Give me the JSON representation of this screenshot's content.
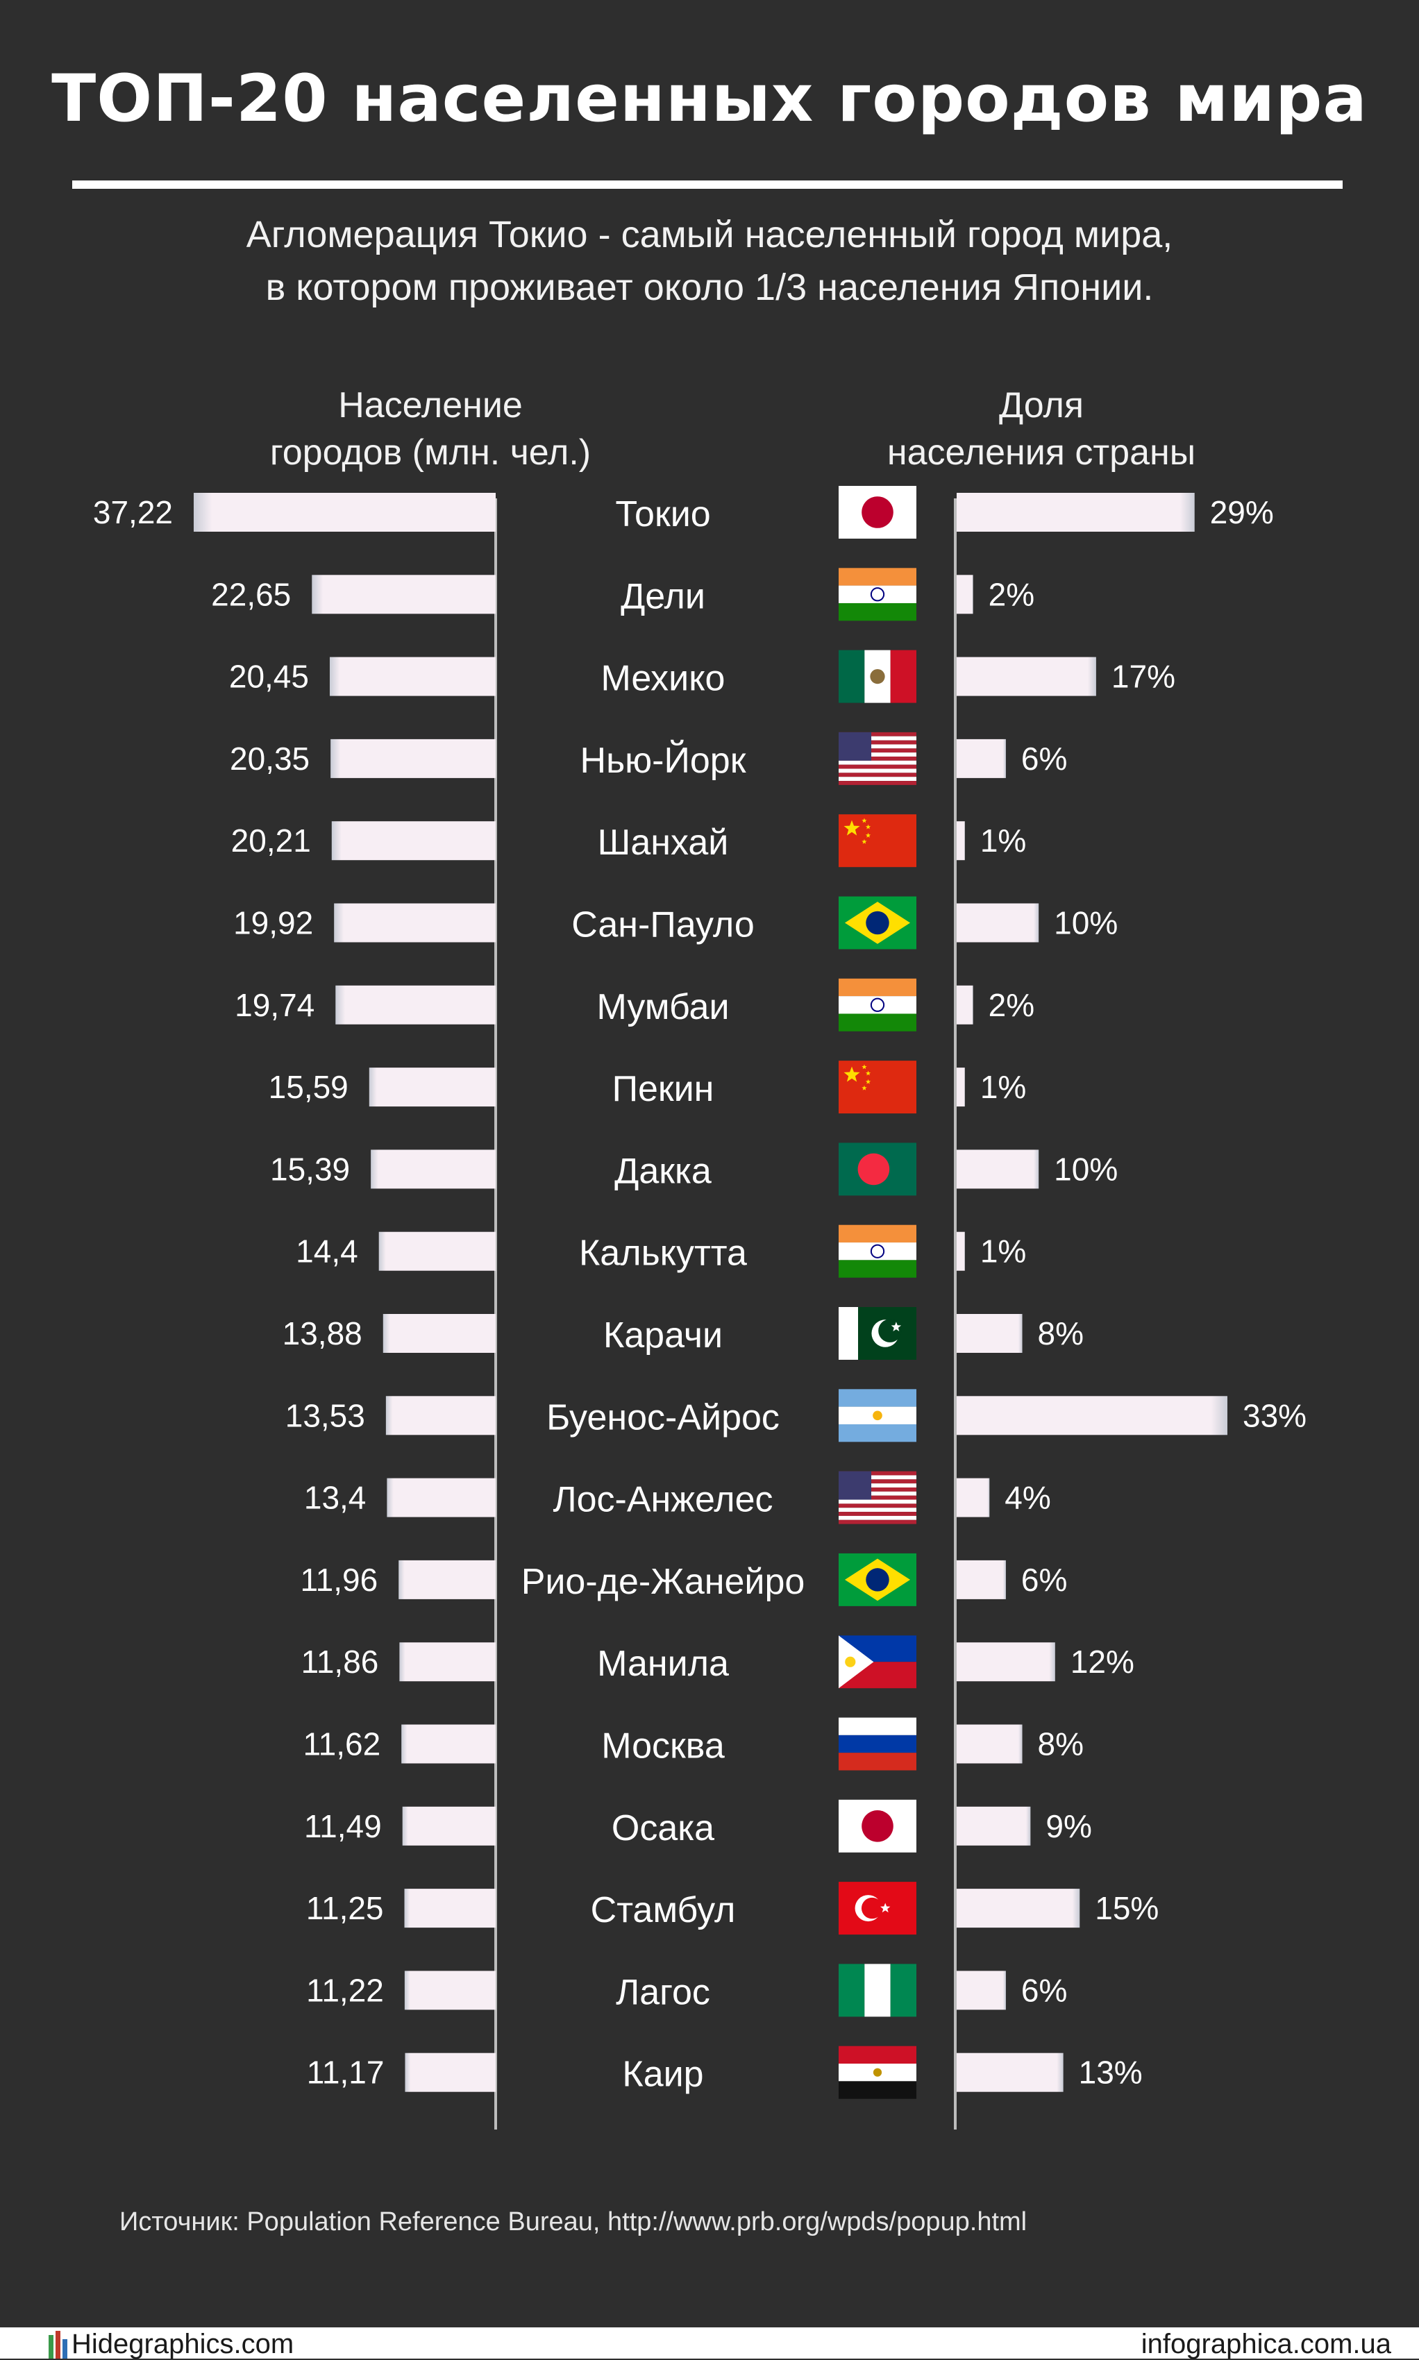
{
  "title": "ТОП-20 населенных городов мира",
  "subtitle_line1": "Агломерация Токио - самый населенный город мира,",
  "subtitle_line2": "в котором проживает около 1/3 населения Японии.",
  "left_header_line1": "Население",
  "left_header_line2": "городов (млн. чел.)",
  "right_header_line1": "Доля",
  "right_header_line2": "населения страны",
  "source": "Источник: Population Reference Bureau,  http://www.prb.org/wpds/popup.html",
  "footer_left": "Hidegraphics.com",
  "footer_right": "infographica.com.ua",
  "colors": {
    "background": "#2e2e2e",
    "bar": "#f7eef4",
    "text": "#ffffff",
    "axis": "#bdbdbd"
  },
  "chart_data": {
    "type": "bar",
    "categories": [
      "Токио",
      "Дели",
      "Мехико",
      "Нью-Йорк",
      "Шанхай",
      "Сан-Пауло",
      "Мумбаи",
      "Пекин",
      "Дакка",
      "Калькутта",
      "Карачи",
      "Буенос-Айрос",
      "Лос-Анжелес",
      "Рио-де-Жанейро",
      "Манила",
      "Москва",
      "Осака",
      "Стамбул",
      "Лагос",
      "Каир"
    ],
    "flags": [
      "japan-flag",
      "india-flag",
      "mexico-flag",
      "usa-flag",
      "china-flag",
      "brazil-flag",
      "india-flag",
      "china-flag",
      "bangladesh-flag",
      "india-flag",
      "pakistan-flag",
      "argentina-flag",
      "usa-flag",
      "brazil-flag",
      "philippines-flag",
      "russia-flag",
      "japan-flag",
      "turkey-flag",
      "nigeria-flag",
      "egypt-flag"
    ],
    "series": [
      {
        "name": "Население городов (млн. чел.)",
        "values": [
          37.22,
          22.65,
          20.45,
          20.35,
          20.21,
          19.92,
          19.74,
          15.59,
          15.39,
          14.4,
          13.88,
          13.53,
          13.4,
          11.96,
          11.86,
          11.62,
          11.49,
          11.25,
          11.22,
          11.17
        ],
        "labels": [
          "37,22",
          "22,65",
          "20,45",
          "20,35",
          "20,21",
          "19,92",
          "19,74",
          "15,59",
          "15,39",
          "14,4",
          "13,88",
          "13,53",
          "13,4",
          "11,96",
          "11,86",
          "11,62",
          "11,49",
          "11,25",
          "11,22",
          "11,17"
        ]
      },
      {
        "name": "Доля населения страны",
        "values": [
          29,
          2,
          17,
          6,
          1,
          10,
          2,
          1,
          10,
          1,
          8,
          33,
          4,
          6,
          12,
          8,
          9,
          15,
          6,
          13
        ],
        "labels": [
          "29%",
          "2%",
          "17%",
          "6%",
          "1%",
          "10%",
          "2%",
          "1%",
          "10%",
          "1%",
          "8%",
          "33%",
          "4%",
          "6%",
          "12%",
          "8%",
          "9%",
          "15%",
          "6%",
          "13%"
        ]
      }
    ]
  }
}
